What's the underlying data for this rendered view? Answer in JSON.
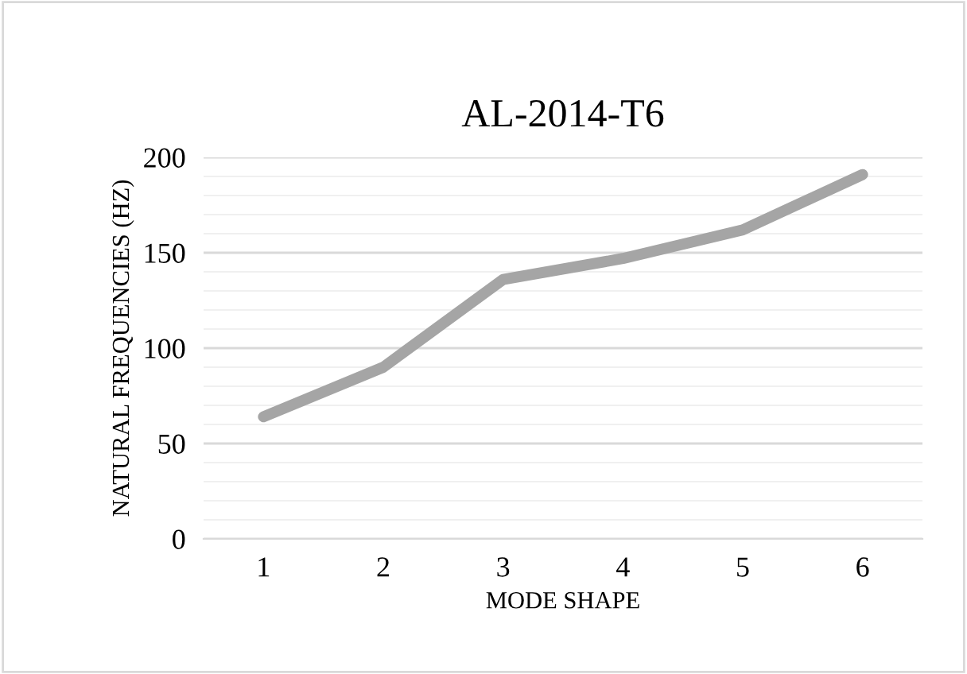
{
  "chart_data": {
    "type": "line",
    "title": "AL-2014-T6",
    "xlabel": "MODE SHAPE",
    "ylabel": "NATURAL FREQUENCIES (HZ)",
    "categories": [
      "1",
      "2",
      "3",
      "4",
      "5",
      "6"
    ],
    "series": [
      {
        "color": "#a5a5a5",
        "values": [
          64,
          90,
          136,
          147,
          162,
          191
        ]
      }
    ],
    "ylim": [
      0,
      200
    ],
    "yticks": [
      0,
      50,
      100,
      150,
      200
    ],
    "grid": "y",
    "legend": false,
    "marker": "none",
    "line_style": "solid"
  }
}
